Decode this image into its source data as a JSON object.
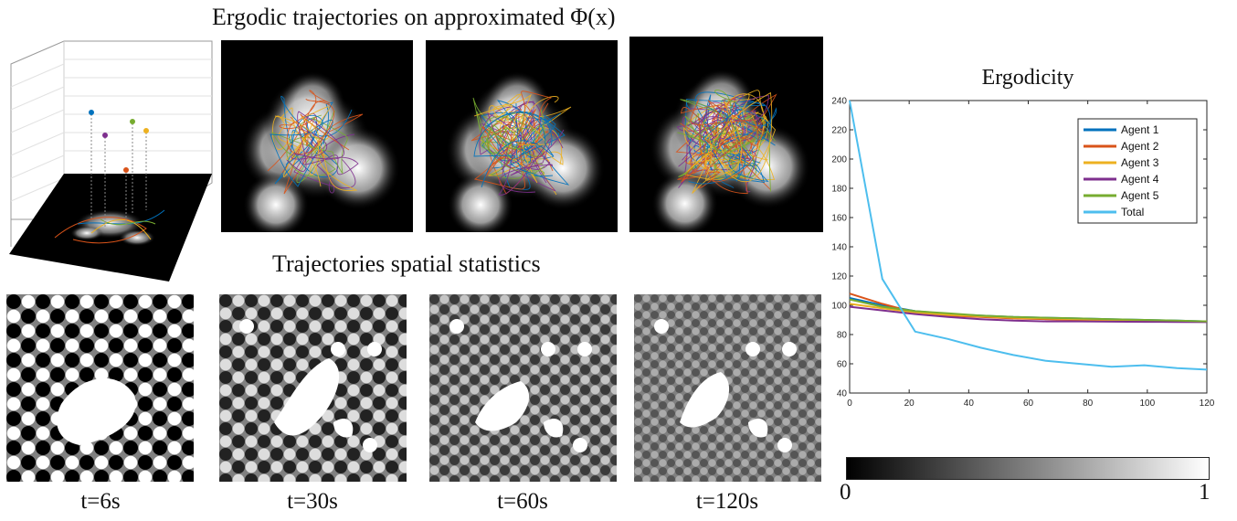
{
  "titles": {
    "top": "Ergodic trajectories on approximated Φ(x)",
    "middle": "Trajectories spatial statistics"
  },
  "time_labels": [
    "t=6s",
    "t=30s",
    "t=60s",
    "t=120s"
  ],
  "colorbar": {
    "min": "0",
    "max": "1"
  },
  "colors": {
    "agent1": "#0072BD",
    "agent2": "#D95319",
    "agent3": "#EDB120",
    "agent4": "#7E2F8E",
    "agent5": "#77AC30",
    "total": "#4DBEEE"
  },
  "chart_data": {
    "type": "line",
    "title": "Ergodicity",
    "xlabel": "",
    "ylabel": "",
    "xlim": [
      0,
      120
    ],
    "ylim": [
      40,
      240
    ],
    "xticks": [
      0,
      20,
      40,
      60,
      80,
      100,
      120
    ],
    "yticks": [
      40,
      60,
      80,
      100,
      120,
      140,
      160,
      180,
      200,
      220,
      240
    ],
    "legend_position": "top-right",
    "series": [
      {
        "name": "Agent 1",
        "color": "#0072BD",
        "x": [
          0,
          11,
          22,
          33,
          44,
          55,
          66,
          77,
          88,
          99,
          110,
          120
        ],
        "y": [
          105,
          100,
          96,
          94,
          93,
          92,
          91.5,
          91,
          90.5,
          90,
          89.5,
          89
        ]
      },
      {
        "name": "Agent 2",
        "color": "#D95319",
        "x": [
          0,
          11,
          22,
          33,
          44,
          55,
          66,
          77,
          88,
          99,
          110,
          120
        ],
        "y": [
          108,
          101,
          95,
          93,
          92,
          91,
          90.5,
          90,
          89.5,
          89.5,
          89,
          89
        ]
      },
      {
        "name": "Agent 3",
        "color": "#EDB120",
        "x": [
          0,
          11,
          22,
          33,
          44,
          55,
          66,
          77,
          88,
          99,
          110,
          120
        ],
        "y": [
          101,
          98,
          95,
          93.5,
          92.5,
          91.5,
          91,
          90.5,
          90,
          89.5,
          89,
          89
        ]
      },
      {
        "name": "Agent 4",
        "color": "#7E2F8E",
        "x": [
          0,
          11,
          22,
          33,
          44,
          55,
          66,
          77,
          88,
          99,
          110,
          120
        ],
        "y": [
          99,
          96.5,
          94,
          92,
          90.5,
          89.5,
          89,
          89,
          88.8,
          88.7,
          88.6,
          88.5
        ]
      },
      {
        "name": "Agent 5",
        "color": "#77AC30",
        "x": [
          0,
          11,
          22,
          33,
          44,
          55,
          66,
          77,
          88,
          99,
          110,
          120
        ],
        "y": [
          104,
          99,
          96,
          94.5,
          93,
          92,
          91.5,
          91,
          90.5,
          90,
          89.5,
          89
        ]
      },
      {
        "name": "Total",
        "color": "#4DBEEE",
        "x": [
          0,
          11,
          22,
          33,
          44,
          55,
          66,
          77,
          88,
          99,
          110,
          120
        ],
        "y": [
          240,
          118,
          82,
          77,
          71,
          66,
          62,
          60,
          58,
          59,
          57,
          56
        ]
      }
    ]
  }
}
